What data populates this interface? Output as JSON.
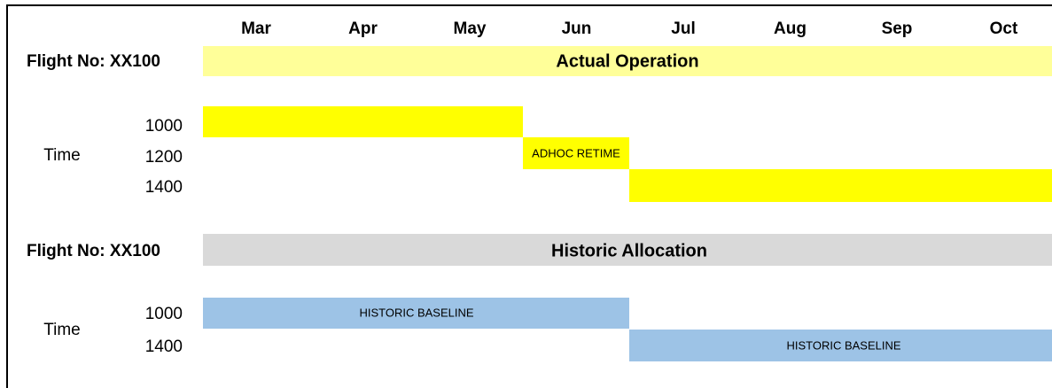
{
  "months": [
    "Mar",
    "Apr",
    "May",
    "Jun",
    "Jul",
    "Aug",
    "Sep",
    "Oct"
  ],
  "sections": [
    {
      "flight": "Flight No: XX100",
      "title": "Actual Operation",
      "time_label": "Time",
      "times": [
        "1000",
        "1200",
        "1400"
      ],
      "bar_labels": [
        "ADHOC RETIME"
      ]
    },
    {
      "flight": "Flight No: XX100",
      "title": "Historic Allocation",
      "time_label": "Time",
      "times": [
        "1000",
        "1400"
      ],
      "bar_labels": [
        "HISTORIC BASELINE",
        "HISTORIC BASELINE"
      ]
    }
  ]
}
